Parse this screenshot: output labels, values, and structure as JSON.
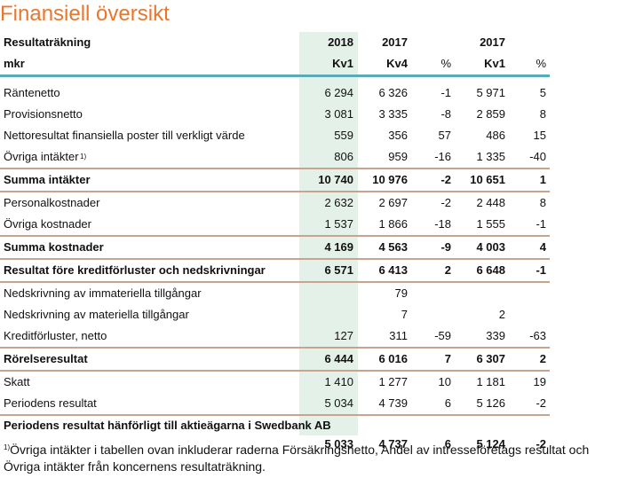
{
  "title": "Finansiell översikt",
  "header": {
    "row1": {
      "label": "Resultaträkning",
      "c1": "2018",
      "c2": "2017",
      "c3": "",
      "c4": "2017",
      "c5": ""
    },
    "row2": {
      "label": "mkr",
      "c1": "Kv1",
      "c2": "Kv4",
      "c3": "%",
      "c4": "Kv1",
      "c5": "%"
    }
  },
  "rows": [
    {
      "label": "Räntenetto",
      "c1": "6 294",
      "c2": "6 326",
      "c3": "-1",
      "c4": "5 971",
      "c5": "5"
    },
    {
      "label": "Provisionsnetto",
      "c1": "3 081",
      "c2": "3 335",
      "c3": "-8",
      "c4": "2 859",
      "c5": "8"
    },
    {
      "label": "Nettoresultat finansiella poster till verkligt värde",
      "c1": "559",
      "c2": "356",
      "c3": "57",
      "c4": "486",
      "c5": "15"
    },
    {
      "label": "Övriga intäkter",
      "sup": "1)",
      "c1": "806",
      "c2": "959",
      "c3": "-16",
      "c4": "1 335",
      "c5": "-40"
    },
    {
      "label": "Summa intäkter",
      "c1": "10 740",
      "c2": "10 976",
      "c3": "-2",
      "c4": "10 651",
      "c5": "1"
    },
    {
      "label": "Personalkostnader",
      "c1": "2 632",
      "c2": "2 697",
      "c3": "-2",
      "c4": "2 448",
      "c5": "8"
    },
    {
      "label": "Övriga kostnader",
      "c1": "1 537",
      "c2": "1 866",
      "c3": "-18",
      "c4": "1 555",
      "c5": "-1"
    },
    {
      "label": "Summa kostnader",
      "c1": "4 169",
      "c2": "4 563",
      "c3": "-9",
      "c4": "4 003",
      "c5": "4"
    },
    {
      "label": "Resultat före kreditförluster och nedskrivningar",
      "c1": "6 571",
      "c2": "6 413",
      "c3": "2",
      "c4": "6 648",
      "c5": "-1"
    },
    {
      "label": "Nedskrivning av immateriella tillgångar",
      "c1": "",
      "c2": "79",
      "c3": "",
      "c4": "",
      "c5": ""
    },
    {
      "label": "Nedskrivning av materiella tillgångar",
      "c1": "",
      "c2": "7",
      "c3": "",
      "c4": "2",
      "c5": ""
    },
    {
      "label": "Kreditförluster, netto",
      "c1": "127",
      "c2": "311",
      "c3": "-59",
      "c4": "339",
      "c5": "-63"
    },
    {
      "label": "Rörelseresultat",
      "c1": "6 444",
      "c2": "6 016",
      "c3": "7",
      "c4": "6 307",
      "c5": "2"
    },
    {
      "label": "Skatt",
      "c1": "1 410",
      "c2": "1 277",
      "c3": "10",
      "c4": "1 181",
      "c5": "19"
    },
    {
      "label": "Periodens resultat",
      "c1": "5 034",
      "c2": "4 739",
      "c3": "6",
      "c4": "5 126",
      "c5": "-2"
    },
    {
      "label": "Periodens resultat hänförligt till aktieägarna i Swedbank AB",
      "c1": "5 033",
      "c2": "4 737",
      "c3": "6",
      "c4": "5 124",
      "c5": "-2"
    }
  ],
  "footnote": {
    "marker": "1)",
    "text": "Övriga intäkter i tabellen ovan inkluderar raderna Försäkringsnetto, Andel av intresseföretags resultat och Övriga intäkter från koncernens resultaträkning."
  },
  "colors": {
    "title": "#e8772e",
    "highlight_column": "#e4f1e9",
    "rule_brown": "#c8a48f",
    "rule_teal": "#5aaab8"
  }
}
